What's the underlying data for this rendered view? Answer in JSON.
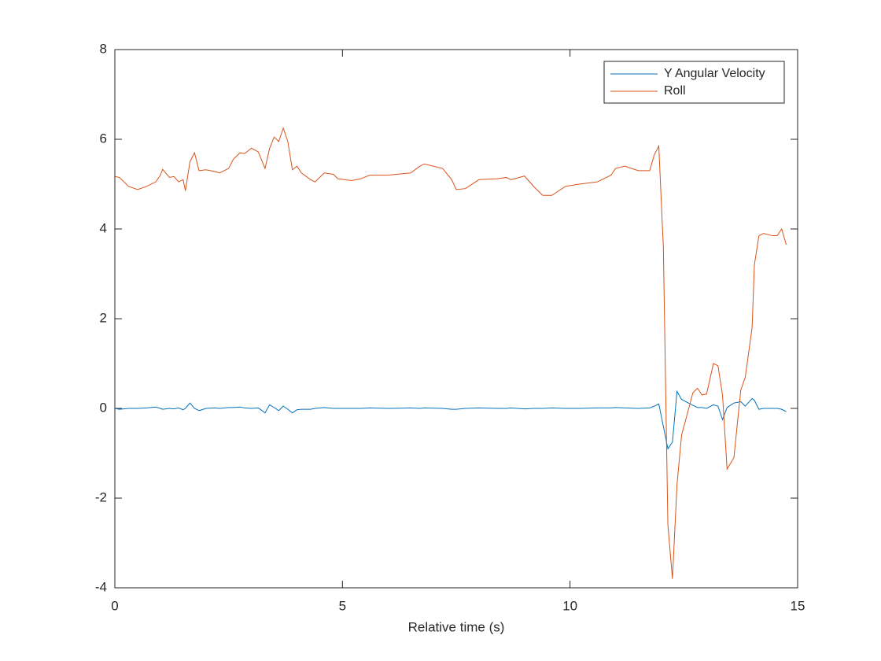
{
  "chart_data": {
    "type": "line",
    "xlabel": "Relative time (s)",
    "x": [
      0,
      0.1,
      0.3,
      0.5,
      0.7,
      0.9,
      1.0,
      1.05,
      1.2,
      1.3,
      1.4,
      1.5,
      1.55,
      1.65,
      1.75,
      1.85,
      2.0,
      2.2,
      2.3,
      2.5,
      2.6,
      2.75,
      2.85,
      3.0,
      3.15,
      3.3,
      3.4,
      3.5,
      3.6,
      3.7,
      3.8,
      3.9,
      4.0,
      4.1,
      4.3,
      4.4,
      4.6,
      4.8,
      4.9,
      5.2,
      5.4,
      5.6,
      6.0,
      6.5,
      6.7,
      6.8,
      7.2,
      7.4,
      7.5,
      7.7,
      8.0,
      8.4,
      8.6,
      8.7,
      9.0,
      9.2,
      9.4,
      9.6,
      9.9,
      10.2,
      10.6,
      10.9,
      11.0,
      11.2,
      11.5,
      11.75,
      11.85,
      11.95,
      12.05,
      12.15,
      12.25,
      12.35,
      12.45,
      12.7,
      12.8,
      12.9,
      13.0,
      13.15,
      13.25,
      13.35,
      13.45,
      13.6,
      13.75,
      13.85,
      14.0,
      14.05,
      14.15,
      14.25,
      14.45,
      14.55,
      14.65,
      14.75
    ],
    "series": [
      {
        "name": "Y Angular Velocity",
        "color": "#0072bd",
        "values": [
          0,
          -0.02,
          0,
          0,
          0.01,
          0.03,
          0,
          -0.02,
          0,
          -0.01,
          0.01,
          -0.03,
          0,
          0.12,
          0,
          -0.05,
          0,
          0.01,
          0,
          0.02,
          0.02,
          0.03,
          0.01,
          0,
          0.01,
          -0.1,
          0.08,
          0.02,
          -0.05,
          0.05,
          -0.02,
          -0.1,
          -0.03,
          -0.02,
          -0.02,
          0,
          0.02,
          0,
          0,
          0,
          0,
          0.01,
          0,
          0.01,
          0,
          0.01,
          0,
          -0.02,
          -0.02,
          0,
          0.01,
          0,
          0,
          0.01,
          -0.01,
          0,
          0,
          0.01,
          0,
          0,
          0.01,
          0.01,
          0.02,
          0.01,
          0,
          0.01,
          0.05,
          0.1,
          -0.4,
          -0.9,
          -0.75,
          0.38,
          0.2,
          0.07,
          0.02,
          0.02,
          0,
          0.08,
          0.05,
          -0.25,
          0.02,
          0.12,
          0.15,
          0.05,
          0.22,
          0.18,
          -0.02,
          0,
          0,
          0,
          -0.02,
          -0.07
        ]
      },
      {
        "name": "Roll",
        "color": "#d95319",
        "values": [
          5.17,
          5.15,
          4.95,
          4.88,
          4.95,
          5.05,
          5.2,
          5.33,
          5.15,
          5.17,
          5.05,
          5.1,
          4.85,
          5.5,
          5.7,
          5.3,
          5.32,
          5.28,
          5.25,
          5.35,
          5.55,
          5.7,
          5.68,
          5.8,
          5.72,
          5.35,
          5.8,
          6.05,
          5.95,
          6.25,
          5.95,
          5.32,
          5.4,
          5.25,
          5.1,
          5.05,
          5.25,
          5.22,
          5.12,
          5.08,
          5.12,
          5.2,
          5.2,
          5.25,
          5.4,
          5.45,
          5.35,
          5.1,
          4.88,
          4.9,
          5.1,
          5.12,
          5.15,
          5.1,
          5.18,
          4.95,
          4.75,
          4.75,
          4.95,
          5.0,
          5.05,
          5.2,
          5.35,
          5.4,
          5.3,
          5.3,
          5.65,
          5.85,
          3.6,
          -2.6,
          -3.8,
          -1.7,
          -0.6,
          0.35,
          0.45,
          0.3,
          0.32,
          1.0,
          0.95,
          0.3,
          -1.35,
          -1.1,
          0.4,
          0.7,
          1.8,
          3.2,
          3.85,
          3.9,
          3.85,
          3.85,
          4.0,
          3.65
        ]
      }
    ],
    "xlim": [
      0,
      15
    ],
    "xticks": [
      0,
      5,
      10,
      15
    ],
    "ylim": [
      -4,
      8
    ],
    "yticks": [
      -4,
      -2,
      0,
      2,
      4,
      6,
      8
    ],
    "legend": "northeast"
  }
}
